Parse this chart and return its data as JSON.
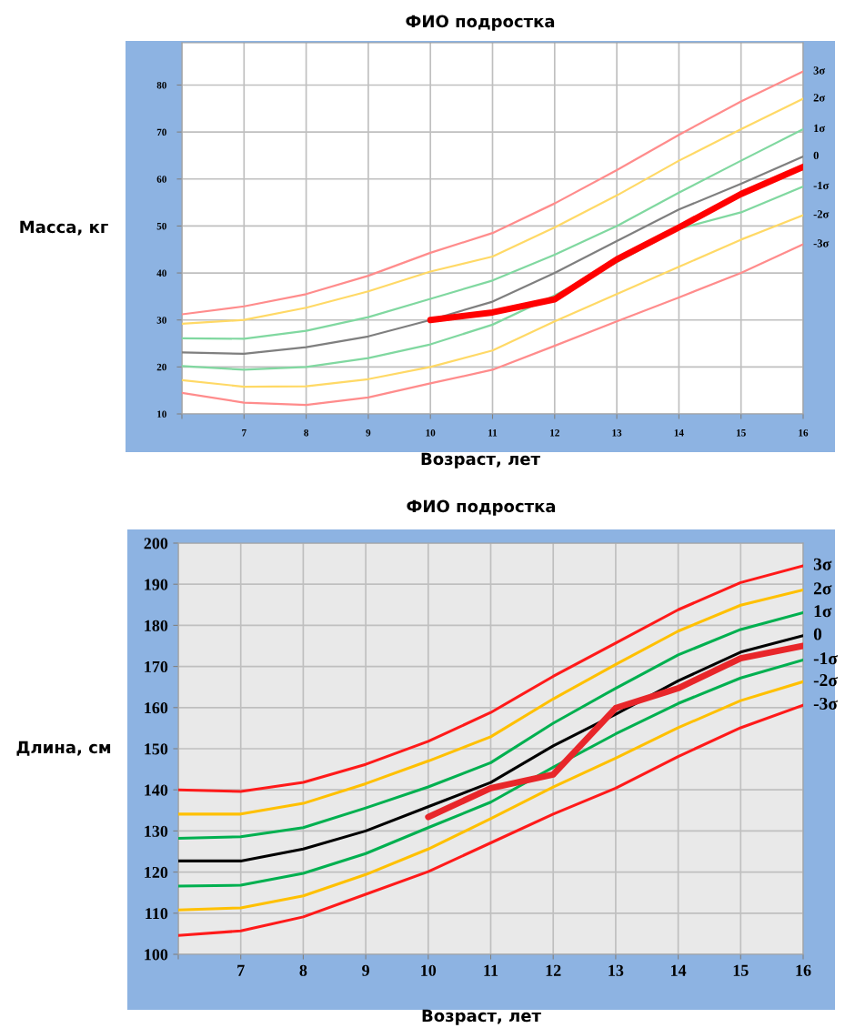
{
  "chart_data": [
    {
      "type": "line",
      "title": "ФИО подростка",
      "xlabel": "Возраст, лет",
      "ylabel": "Масса, кг",
      "x": [
        6,
        7,
        8,
        9,
        10,
        11,
        12,
        13,
        14,
        15,
        16
      ],
      "xlim": [
        6,
        16
      ],
      "xticks": [
        {
          "value": 6,
          "label": null
        },
        7,
        8,
        9,
        10,
        11,
        12,
        13,
        14,
        15,
        16
      ],
      "ylim": [
        10,
        89
      ],
      "yticks": [
        10,
        20,
        30,
        40,
        50,
        60,
        70,
        80
      ],
      "grid": true,
      "legend": false,
      "series": [
        {
          "name": "3σ",
          "color": "#ff8c8c",
          "values": [
            31.2,
            32.9,
            35.5,
            39.4,
            44.3,
            48.5,
            54.8,
            61.9,
            69.4,
            76.5,
            82.9
          ]
        },
        {
          "name": "2σ",
          "color": "#ffd966",
          "values": [
            29.2,
            30,
            32.6,
            36.1,
            40.3,
            43.5,
            49.7,
            56.5,
            63.9,
            70.6,
            77.1
          ]
        },
        {
          "name": "1σ",
          "color": "#80d8a0",
          "values": [
            26.1,
            26,
            27.7,
            30.6,
            34.5,
            38.4,
            43.9,
            50,
            57.1,
            63.9,
            70.6
          ]
        },
        {
          "name": "0",
          "color": "#7f7f7f",
          "values": [
            23.1,
            22.8,
            24.2,
            26.5,
            30,
            33.9,
            40,
            46.8,
            53.5,
            59,
            64.8
          ]
        },
        {
          "name": "-1σ",
          "color": "#80d8a0",
          "values": [
            20.2,
            19.4,
            20,
            21.9,
            24.8,
            29,
            35.2,
            42.3,
            49.4,
            52.9,
            58.4
          ]
        },
        {
          "name": "-2σ",
          "color": "#ffd966",
          "values": [
            17.2,
            15.8,
            15.9,
            17.4,
            20,
            23.5,
            29.7,
            35.5,
            41.3,
            47.1,
            52.3
          ]
        },
        {
          "name": "-3σ",
          "color": "#ff8c8c",
          "values": [
            14.5,
            12.4,
            11.9,
            13.5,
            16.5,
            19.4,
            24.5,
            29.7,
            34.8,
            40,
            46.1
          ]
        },
        {
          "color": "#ff0000",
          "x": [
            10,
            11,
            12,
            13,
            14,
            15,
            16
          ],
          "values": [
            30,
            31.6,
            34.4,
            42.9,
            49.7,
            56.8,
            62.6
          ]
        }
      ]
    },
    {
      "type": "line",
      "title": "ФИО подростка",
      "xlabel": "Возраст, лет",
      "ylabel": "Длина, см",
      "x": [
        6,
        7,
        8,
        9,
        10,
        11,
        12,
        13,
        14,
        15,
        16
      ],
      "xlim": [
        6,
        16
      ],
      "xticks": [
        {
          "value": 6,
          "label": null
        },
        7,
        8,
        9,
        10,
        11,
        12,
        13,
        14,
        15,
        16
      ],
      "ylim": [
        100,
        200
      ],
      "yticks": [
        100,
        110,
        120,
        130,
        140,
        150,
        160,
        170,
        180,
        190,
        200
      ],
      "grid": true,
      "legend": false,
      "series": [
        {
          "name": "3σ",
          "color": "#ff1a1a",
          "values": [
            140,
            139.6,
            141.8,
            146.2,
            151.8,
            158.8,
            167.6,
            175.7,
            183.8,
            190.4,
            194.5
          ]
        },
        {
          "name": "2σ",
          "color": "#ffc000",
          "values": [
            134.1,
            134.1,
            136.7,
            141.5,
            147,
            152.9,
            162.1,
            170.5,
            178.6,
            184.9,
            188.6
          ]
        },
        {
          "name": "1σ",
          "color": "#00b050",
          "values": [
            128.2,
            128.6,
            130.8,
            135.6,
            140.7,
            146.6,
            156.2,
            164.7,
            172.8,
            179,
            183.1
          ]
        },
        {
          "name": "0",
          "color": "#000000",
          "values": [
            122.7,
            122.7,
            125.6,
            130,
            135.9,
            141.8,
            150.7,
            158.4,
            166.5,
            173.5,
            177.5
          ]
        },
        {
          "name": "-1σ",
          "color": "#00b050",
          "values": [
            116.6,
            116.8,
            119.7,
            124.5,
            130.8,
            137,
            145.5,
            153.6,
            161,
            167.2,
            171.6
          ]
        },
        {
          "name": "-2σ",
          "color": "#ffc000",
          "values": [
            110.8,
            111.3,
            114.2,
            119.4,
            125.6,
            133,
            140.7,
            147.7,
            155.1,
            161.7,
            166.3
          ]
        },
        {
          "name": "-3σ",
          "color": "#ff1a1a",
          "values": [
            104.6,
            105.7,
            109.1,
            114.6,
            120.1,
            127.1,
            134.1,
            140.4,
            148.1,
            155.1,
            160.6
          ]
        },
        {
          "color": "#e8262a",
          "x": [
            10,
            11,
            12,
            13,
            14,
            15,
            16
          ],
          "values": [
            133.4,
            140.4,
            143.7,
            159.9,
            164.7,
            172,
            175
          ]
        }
      ]
    }
  ]
}
